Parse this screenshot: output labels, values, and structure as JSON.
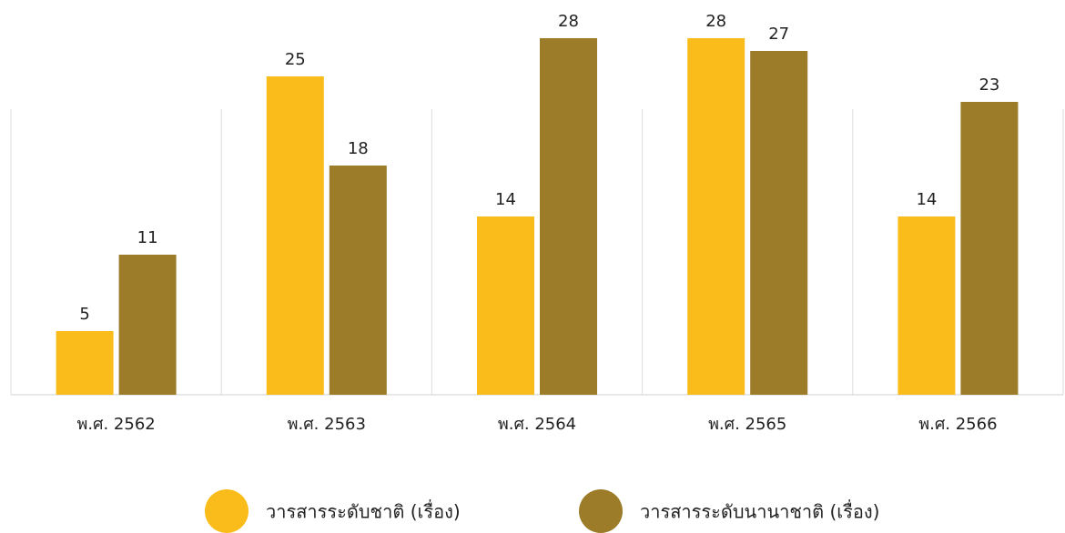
{
  "chart_data": {
    "type": "bar",
    "categories": [
      "พ.ศ. 2562",
      "พ.ศ. 2563",
      "พ.ศ. 2564",
      "พ.ศ. 2565",
      "พ.ศ. 2566"
    ],
    "series": [
      {
        "name": "วารสารระดับชาติ (เรื่อง)",
        "color": "#f9bc1b",
        "values": [
          5,
          25,
          14,
          28,
          14
        ]
      },
      {
        "name": "วารสารระดับนานาชาติ (เรื่อง)",
        "color": "#9c7c28",
        "values": [
          11,
          18,
          28,
          27,
          23
        ]
      }
    ],
    "ylim": [
      0,
      28
    ],
    "legend": "bottom",
    "grid": false
  }
}
